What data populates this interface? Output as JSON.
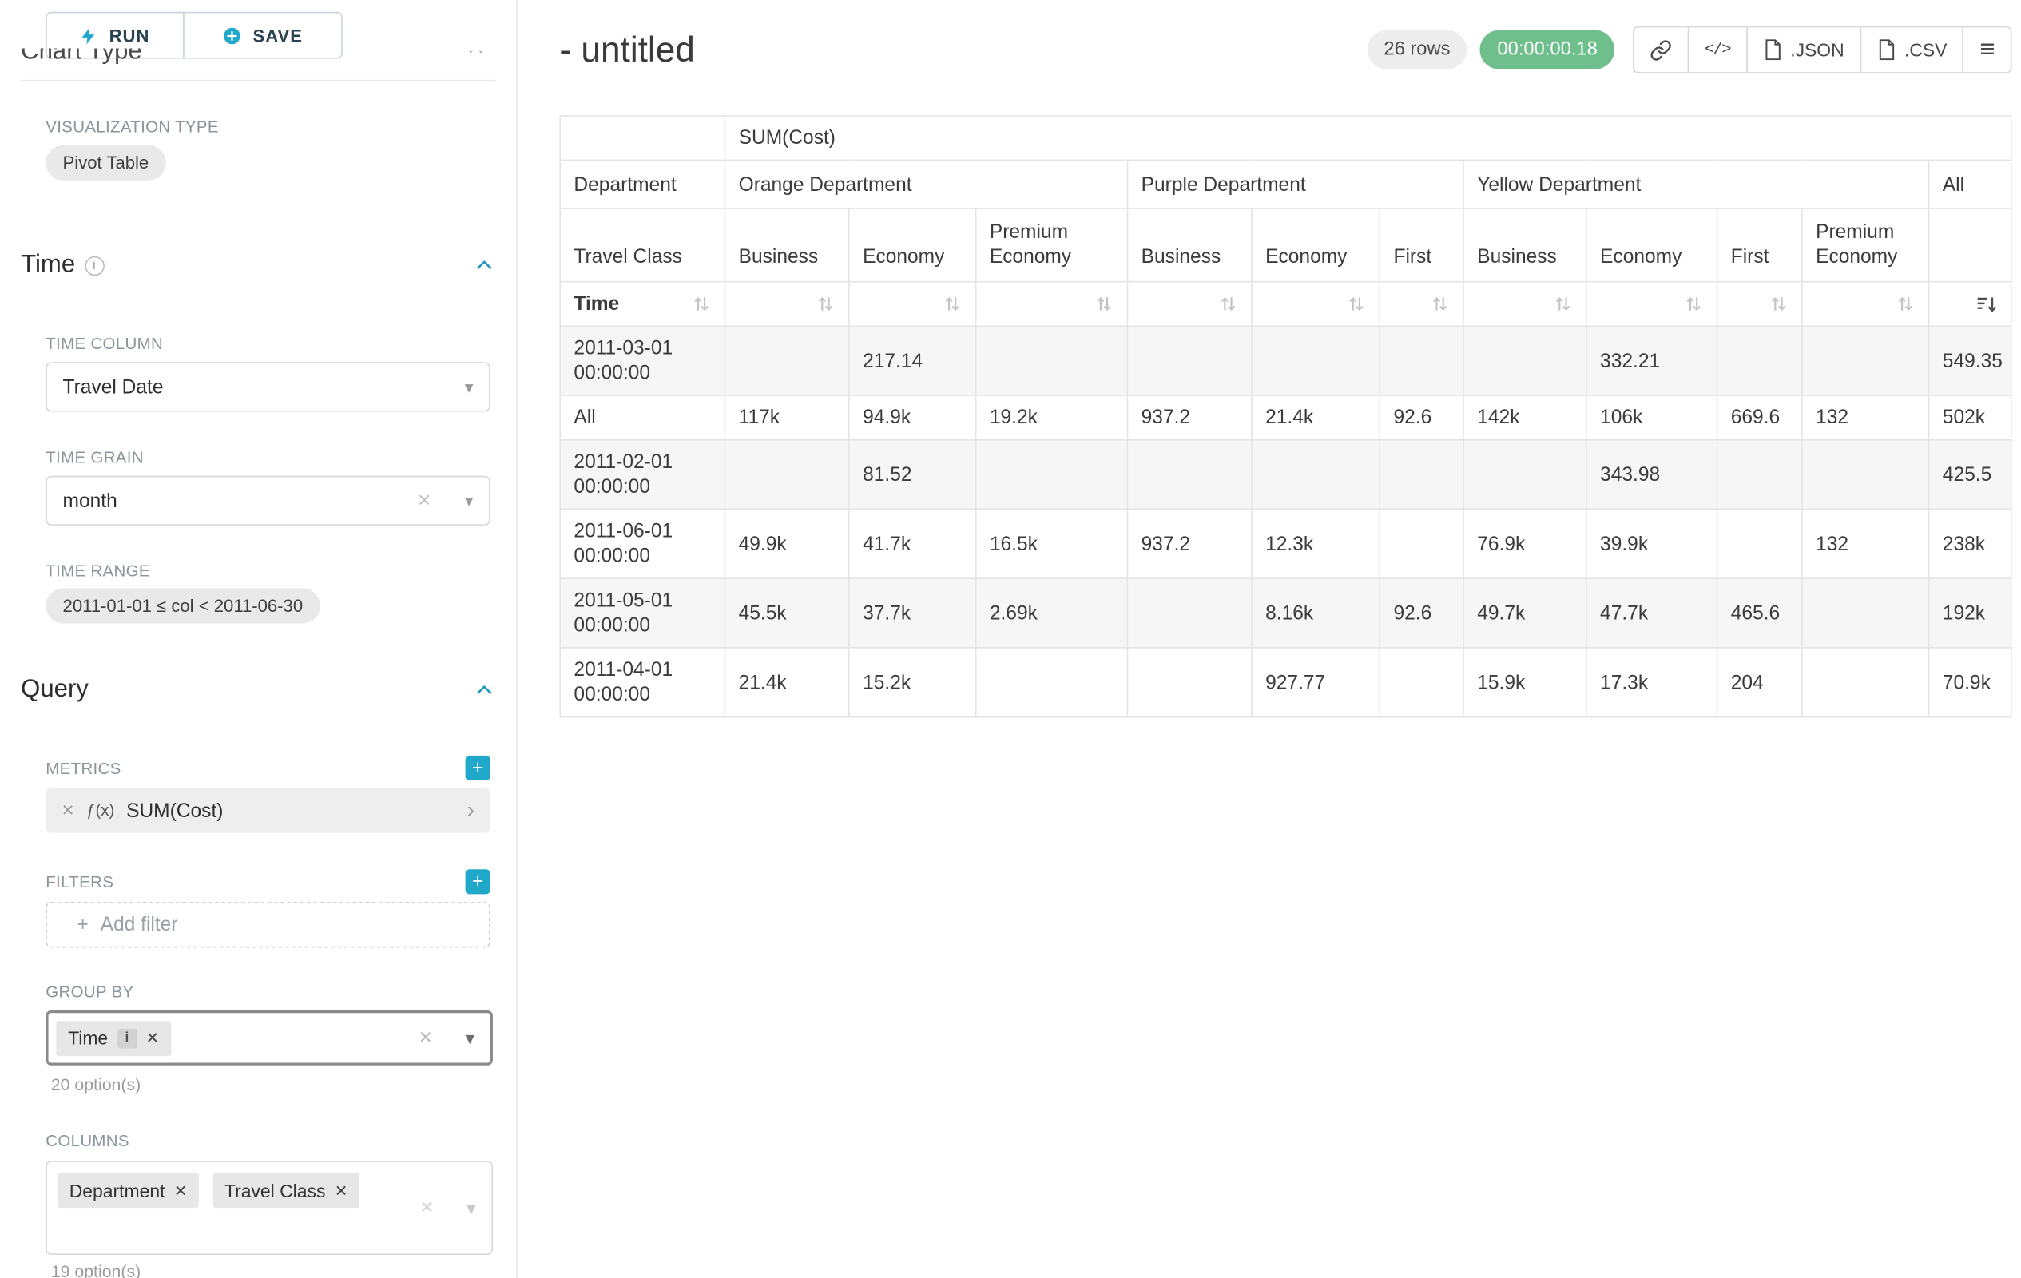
{
  "icons": {
    "close": "✕",
    "plus": "+",
    "caret_down": "▾",
    "chevron_right": "›",
    "info": "i",
    "code": "</>",
    "menu": "≡"
  },
  "sidebar": {
    "run_label": "RUN",
    "save_label": "SAVE",
    "scrolled_heading": "Chart Type",
    "viz": {
      "label": "VISUALIZATION TYPE",
      "value": "Pivot Table"
    },
    "time": {
      "title": "Time",
      "column_label": "TIME COLUMN",
      "column_value": "Travel Date",
      "grain_label": "TIME GRAIN",
      "grain_value": "month",
      "range_label": "TIME RANGE",
      "range_value": "2011-01-01 ≤ col < 2011-06-30"
    },
    "query": {
      "title": "Query",
      "metrics_label": "METRICS",
      "metric_fx": "ƒ(x)",
      "metric_name": "SUM(Cost)",
      "filters_label": "FILTERS",
      "add_filter_label": "Add filter",
      "groupby_label": "GROUP BY",
      "groupby_chip": "Time",
      "groupby_hint": "20 option(s)",
      "columns_label": "COLUMNS",
      "columns_chips": [
        "Department",
        "Travel Class"
      ],
      "columns_hint": "19 option(s)"
    }
  },
  "header": {
    "title": "- untitled",
    "rows_badge": "26 rows",
    "timer_badge": "00:00:00.18",
    "json_label": ".JSON",
    "csv_label": ".CSV"
  },
  "pivot": {
    "metric_header": "SUM(Cost)",
    "dim1_label": "Department",
    "dim2_label": "Travel Class",
    "time_label": "Time",
    "groups": [
      {
        "name": "Orange Department",
        "cols": [
          "Business",
          "Economy",
          "Premium Economy"
        ]
      },
      {
        "name": "Purple Department",
        "cols": [
          "Business",
          "Economy",
          "First"
        ]
      },
      {
        "name": "Yellow Department",
        "cols": [
          "Business",
          "Economy",
          "First",
          "Premium Economy"
        ]
      },
      {
        "name": "All",
        "cols": [
          ""
        ]
      }
    ],
    "rows": [
      {
        "label": "2011-03-01 00:00:00",
        "values": [
          "",
          "217.14",
          "",
          "",
          "",
          "",
          "",
          "332.21",
          "",
          "",
          "549.35"
        ]
      },
      {
        "label": "All",
        "values": [
          "117k",
          "94.9k",
          "19.2k",
          "937.2",
          "21.4k",
          "92.6",
          "142k",
          "106k",
          "669.6",
          "132",
          "502k"
        ]
      },
      {
        "label": "2011-02-01 00:00:00",
        "values": [
          "",
          "81.52",
          "",
          "",
          "",
          "",
          "",
          "343.98",
          "",
          "",
          "425.5"
        ]
      },
      {
        "label": "2011-06-01 00:00:00",
        "values": [
          "49.9k",
          "41.7k",
          "16.5k",
          "937.2",
          "12.3k",
          "",
          "76.9k",
          "39.9k",
          "",
          "132",
          "238k"
        ]
      },
      {
        "label": "2011-05-01 00:00:00",
        "values": [
          "45.5k",
          "37.7k",
          "2.69k",
          "",
          "8.16k",
          "92.6",
          "49.7k",
          "47.7k",
          "465.6",
          "",
          "192k"
        ]
      },
      {
        "label": "2011-04-01 00:00:00",
        "values": [
          "21.4k",
          "15.2k",
          "",
          "",
          "927.77",
          "",
          "15.9k",
          "17.3k",
          "204",
          "",
          "70.9k"
        ]
      }
    ]
  }
}
